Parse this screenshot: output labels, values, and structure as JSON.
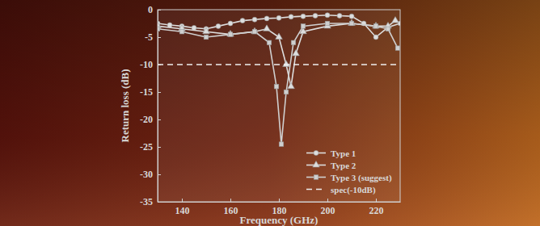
{
  "chart_data": {
    "type": "line",
    "x_label": "Frequency (GHz)",
    "y_label": "Return loss (dB)",
    "xlim": [
      130,
      230
    ],
    "xticks": [
      140,
      160,
      180,
      200,
      220
    ],
    "ylim": [
      -35,
      0
    ],
    "yticks": [
      -35,
      -30,
      -25,
      -20,
      -15,
      -10,
      -5,
      0
    ],
    "grid": false,
    "legend": "lower right",
    "series": [
      {
        "name": "Type 1",
        "color": "#dddddd",
        "marker": "circle",
        "line_style": "solid",
        "x": [
          130,
          135,
          140,
          145,
          150,
          155,
          160,
          165,
          170,
          175,
          180,
          185,
          190,
          195,
          200,
          205,
          210,
          215,
          220,
          225,
          230
        ],
        "values": [
          -2.5,
          -2.8,
          -3.0,
          -3.3,
          -3.5,
          -3.0,
          -2.5,
          -2.0,
          -1.8,
          -1.6,
          -1.5,
          -1.3,
          -1.2,
          -1.1,
          -1.0,
          -1.1,
          -1.2,
          -2.5,
          -5.0,
          -3.2,
          -2.5
        ]
      },
      {
        "name": "Type 2",
        "color": "#dddddd",
        "marker": "triangle",
        "line_style": "solid",
        "x": [
          130,
          140,
          150,
          160,
          170,
          175,
          180,
          183,
          185,
          187,
          190,
          200,
          210,
          220,
          225,
          228
        ],
        "values": [
          -3.0,
          -3.5,
          -4.0,
          -4.5,
          -4.0,
          -3.5,
          -5.0,
          -10.0,
          -14.0,
          -8.0,
          -4.0,
          -3.0,
          -2.5,
          -3.0,
          -3.0,
          -2.0
        ]
      },
      {
        "name": "Type 3 (suggest)",
        "color": "#cfcfcf",
        "marker": "square",
        "line_style": "solid",
        "x": [
          130,
          140,
          150,
          160,
          170,
          176,
          179,
          181,
          183,
          186,
          190,
          200,
          210,
          220,
          225,
          229
        ],
        "values": [
          -3.5,
          -4.0,
          -5.0,
          -4.5,
          -4.0,
          -6.0,
          -14.0,
          -24.5,
          -15.0,
          -6.0,
          -3.0,
          -2.5,
          -2.5,
          -3.0,
          -3.5,
          -7.0
        ]
      },
      {
        "name": "spec(-10dB)",
        "color": "#eeeeee",
        "marker": "none",
        "line_style": "dashed",
        "x": [
          130,
          230
        ],
        "values": [
          -10,
          -10
        ]
      }
    ]
  }
}
